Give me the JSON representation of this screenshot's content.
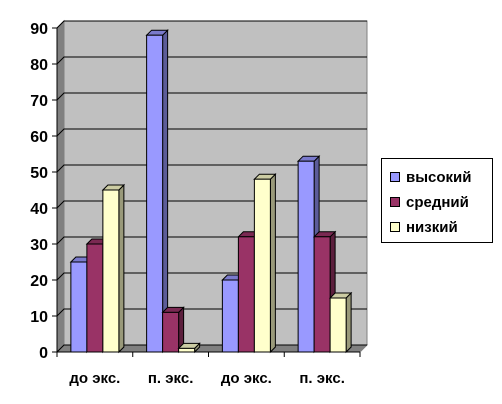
{
  "chart_data": {
    "type": "bar",
    "categories": [
      "до экс.",
      "п. экс.",
      "до экс.",
      "п. экс."
    ],
    "series": [
      {
        "name": "высокий",
        "values": [
          25,
          88,
          20,
          53
        ],
        "color": "#9999ff"
      },
      {
        "name": "средний",
        "values": [
          30,
          11,
          32,
          32
        ],
        "color": "#993366"
      },
      {
        "name": "низкий",
        "values": [
          45,
          1,
          48,
          15
        ],
        "color": "#ffffcc"
      }
    ],
    "ylim": [
      0,
      90
    ],
    "yticks": [
      "0",
      "10",
      "20",
      "30",
      "40",
      "50",
      "60",
      "70",
      "80",
      "90"
    ],
    "grid": true,
    "legend_position": "right",
    "wall_color": "#c0c0c0",
    "bar_style": "3d"
  }
}
